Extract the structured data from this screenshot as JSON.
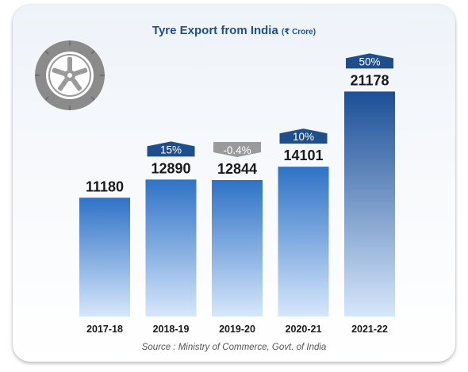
{
  "title": "Tyre Export from India",
  "title_unit": "(₹ Crore)",
  "source": "Source : Ministry of Commerce, Govt. of India",
  "colors": {
    "bar_top": "#2f72c6",
    "bar_bottom": "#d6e7fb",
    "bar_top_last": "#1c4f97",
    "badge_positive": "#1f4e8c",
    "badge_negative": "#9a9a9a",
    "title": "#1f4e8c"
  },
  "icon": "tyre-icon",
  "chart_data": {
    "type": "bar",
    "title": "Tyre Export from India",
    "ylabel": "",
    "xlabel": "",
    "ylim": [
      0,
      23000
    ],
    "grid": false,
    "legend": "none",
    "categories": [
      "2017-18",
      "2018-19",
      "2019-20",
      "2020-21",
      "2021-22"
    ],
    "values": [
      11180,
      12890,
      12844,
      14101,
      21178
    ],
    "value_labels": [
      "11180",
      "12890",
      "12844",
      "14101",
      "21178"
    ],
    "growth_labels": [
      "",
      "15%",
      "-0.4%",
      "10%",
      "50%"
    ],
    "growth_direction": [
      "none",
      "up",
      "down",
      "up",
      "up"
    ]
  }
}
